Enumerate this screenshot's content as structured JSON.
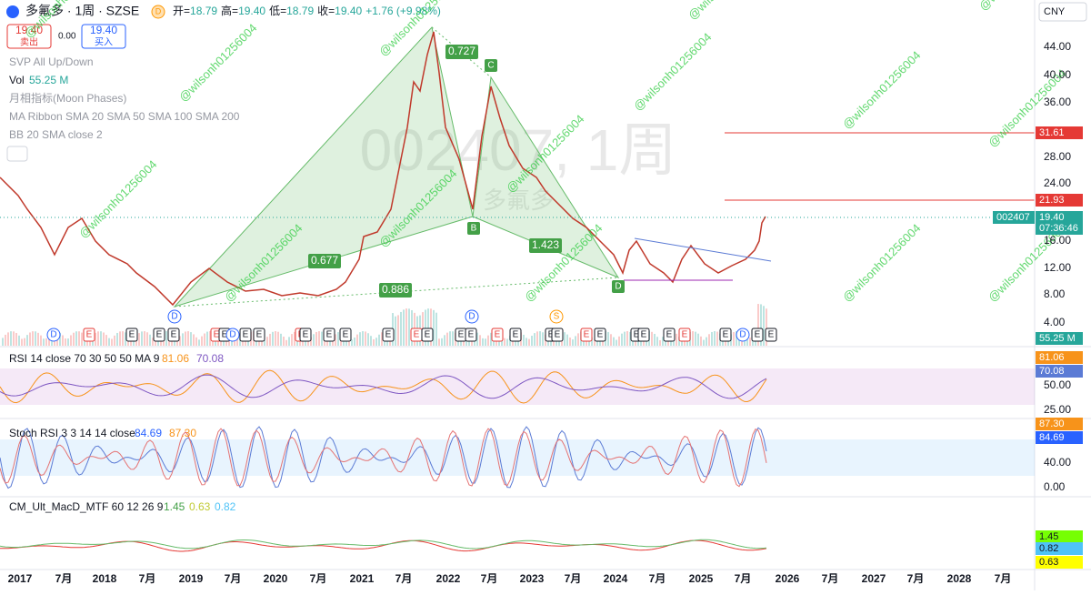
{
  "header": {
    "symbol": "多氟多 · 1周 · SZSE",
    "badge": "D",
    "open_label": "开=",
    "open": "18.79",
    "high_label": "高=",
    "high": "19.40",
    "low_label": "低=",
    "low": "18.79",
    "close_label": "收=",
    "close": "19.40",
    "change": "+1.76 (+9.98%)"
  },
  "trade": {
    "sell_price": "19.40",
    "sell": "卖出",
    "spread": "0.00",
    "buy_price": "19.40",
    "buy": "买入"
  },
  "currency": "CNY",
  "overlays": [
    "SVP All Up/Down",
    "月相指标(Moon Phases)",
    "MA Ribbon SMA 20 SMA 50 SMA 100 SMA 200",
    "BB 20 SMA close 2"
  ],
  "volume": {
    "label": "Vol",
    "value": "55.25 M"
  },
  "watermark": {
    "symbol": "002407, 1周",
    "name": "多氟多",
    "user": "@wilsonh01256004"
  },
  "pattern": {
    "points": [
      "C",
      "B",
      "D"
    ],
    "ratios": [
      "0.727",
      "0.677",
      "0.886",
      "1.423"
    ]
  },
  "price_axis": [
    "44.00",
    "40.00",
    "36.00",
    "28.00",
    "24.00",
    "16.00",
    "12.00",
    "8.00",
    "4.00"
  ],
  "price_tags": {
    "level_1": "31.61",
    "level_2": "21.93",
    "symbol": "002407",
    "last": "19.40",
    "countdown": "07:36:46",
    "volume": "55.25 M"
  },
  "events": [
    "D",
    "E",
    "E",
    "E",
    "E",
    "D",
    "E",
    "E",
    "D",
    "E",
    "E",
    "E",
    "E",
    "E",
    "E",
    "E",
    "E",
    "E",
    "D",
    "E",
    "E",
    "E",
    "E",
    "S",
    "E",
    "E",
    "E",
    "E",
    "E",
    "E",
    "E",
    "E",
    "E",
    "D",
    "E",
    "E"
  ],
  "rsi": {
    "label": "RSI 14 close 70 30 50 50 MA 9",
    "value_1": "81.06",
    "value_2": "70.08",
    "axis": [
      "50.00",
      "25.00"
    ]
  },
  "stoch": {
    "label": "Stoch RSI 3 3 14 14 close",
    "value_1": "84.69",
    "value_2": "87.30",
    "axis": [
      "40.00",
      "0.00"
    ]
  },
  "macd": {
    "label": "CM_Ult_MacD_MTF 60 12 26 9",
    "value_1": "1.45",
    "value_2": "0.63",
    "value_3": "0.82"
  },
  "x_axis": [
    "2017",
    "7月",
    "2018",
    "7月",
    "2019",
    "7月",
    "2020",
    "7月",
    "2021",
    "7月",
    "2022",
    "7月",
    "2023",
    "7月",
    "2024",
    "7月",
    "2025",
    "7月",
    "2026",
    "7月",
    "2027",
    "7月",
    "2028",
    "7月"
  ]
}
